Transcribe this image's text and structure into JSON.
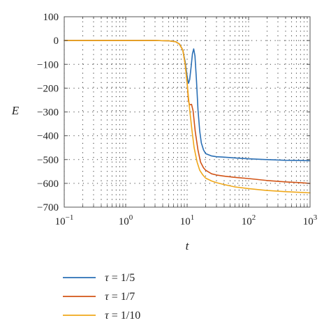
{
  "chart_data": {
    "type": "line",
    "xlabel": "t",
    "ylabel": "E",
    "xscale": "log",
    "xlim": [
      0.1,
      1000
    ],
    "ylim": [
      -700,
      100
    ],
    "x_ticks": [
      {
        "value": 0.1,
        "base": "10",
        "exp": "−1"
      },
      {
        "value": 1,
        "base": "10",
        "exp": "0"
      },
      {
        "value": 10,
        "base": "10",
        "exp": "1"
      },
      {
        "value": 100,
        "base": "10",
        "exp": "2"
      },
      {
        "value": 1000,
        "base": "10",
        "exp": "3"
      }
    ],
    "y_ticks": [
      {
        "value": 100,
        "label": "100"
      },
      {
        "value": 0,
        "label": "0"
      },
      {
        "value": -100,
        "label": "−100"
      },
      {
        "value": -200,
        "label": "−200"
      },
      {
        "value": -300,
        "label": "−300"
      },
      {
        "value": -400,
        "label": "−400"
      },
      {
        "value": -500,
        "label": "−500"
      },
      {
        "value": -600,
        "label": "−600"
      },
      {
        "value": -700,
        "label": "−700"
      }
    ],
    "grid": "dotted",
    "legend_position": "below",
    "series": [
      {
        "name_symbol": "τ",
        "name_rest": " = 1/5",
        "color": "#2a6fb5",
        "x": [
          0.1,
          1,
          3,
          5,
          6.5,
          7.5,
          8.5,
          9.3,
          10,
          10.5,
          11,
          11.6,
          12.2,
          12.8,
          13.4,
          14.2,
          15,
          16,
          17,
          18.5,
          20,
          25,
          30,
          40,
          60,
          100,
          200,
          400,
          700,
          1000
        ],
        "y": [
          0,
          0,
          0,
          -1,
          -5,
          -15,
          -40,
          -90,
          -150,
          -180,
          -165,
          -110,
          -55,
          -35,
          -65,
          -170,
          -290,
          -380,
          -430,
          -460,
          -475,
          -485,
          -488,
          -490,
          -493,
          -497,
          -500,
          -503,
          -504,
          -505
        ]
      },
      {
        "name_symbol": "τ",
        "name_rest": " = 1/7",
        "color": "#d25416",
        "x": [
          0.1,
          1,
          3,
          5,
          6.5,
          7.5,
          8.5,
          9.3,
          10,
          10.5,
          11,
          11.8,
          12.5,
          13.5,
          15,
          16.5,
          18.5,
          20,
          25,
          30,
          40,
          60,
          100,
          200,
          400,
          700,
          1000
        ],
        "y": [
          0,
          0,
          0,
          -1,
          -5,
          -15,
          -40,
          -100,
          -180,
          -255,
          -270,
          -268,
          -295,
          -380,
          -460,
          -510,
          -535,
          -545,
          -560,
          -565,
          -570,
          -575,
          -580,
          -588,
          -594,
          -597,
          -600
        ]
      },
      {
        "name_symbol": "τ",
        "name_rest": " = 1/10",
        "color": "#f0a81a",
        "x": [
          0.1,
          1,
          3,
          5,
          6.5,
          7.5,
          8.5,
          9.3,
          10,
          11,
          12,
          13,
          14.5,
          16,
          18,
          20,
          25,
          30,
          40,
          60,
          100,
          200,
          400,
          700,
          1000
        ],
        "y": [
          0,
          0,
          0,
          -1,
          -5,
          -15,
          -40,
          -100,
          -180,
          -290,
          -380,
          -450,
          -510,
          -545,
          -565,
          -578,
          -590,
          -597,
          -605,
          -615,
          -622,
          -630,
          -635,
          -638,
          -640
        ]
      }
    ]
  }
}
